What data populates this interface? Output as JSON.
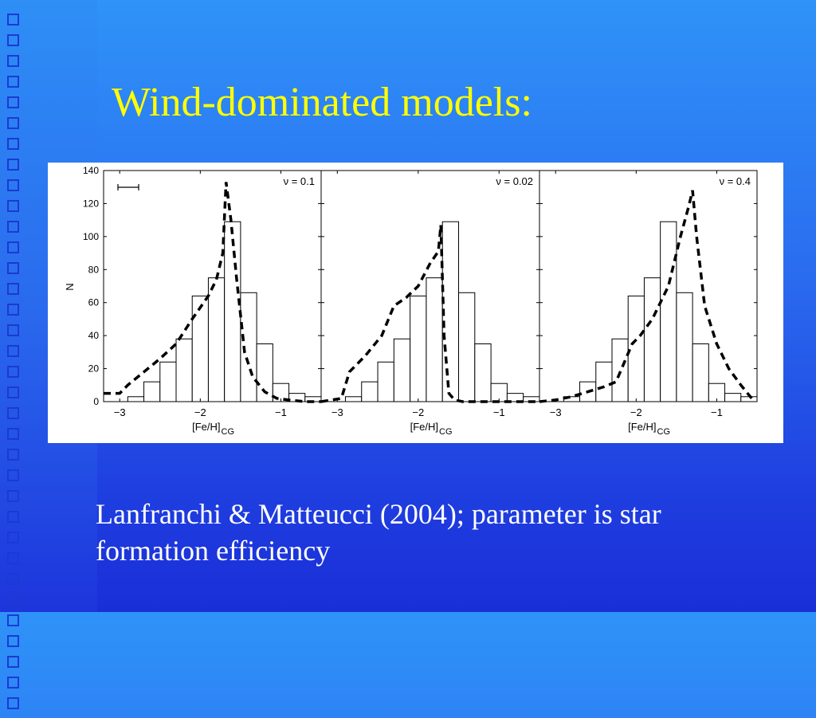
{
  "slide": {
    "title": "Wind-dominated models:",
    "caption": "Lanfranchi & Matteucci (2004); parameter is star formation efficiency",
    "colors": {
      "title": "#ffff00",
      "caption": "#ffffff",
      "background": "#2a6cef"
    }
  },
  "chart_data": {
    "type": "bar",
    "ylabel": "N",
    "xlabel": "[Fe/H]",
    "xlabel_sub": "CG",
    "ylim": [
      0,
      140
    ],
    "xlim": [
      -3.2,
      -0.5
    ],
    "yticks": [
      0,
      20,
      40,
      60,
      80,
      100,
      120,
      140
    ],
    "xticks": [
      -3,
      -2,
      -1
    ],
    "xtick_labels": [
      "−3",
      "−2",
      "−1"
    ],
    "ytick_labels": [
      "0",
      "20",
      "40",
      "60",
      "80",
      "100",
      "120",
      "140"
    ],
    "histogram": {
      "bin_edges": [
        -3.1,
        -2.9,
        -2.7,
        -2.5,
        -2.3,
        -2.1,
        -1.9,
        -1.7,
        -1.5,
        -1.3,
        -1.1,
        -0.9,
        -0.7,
        -0.5
      ],
      "counts": [
        0,
        3,
        12,
        24,
        38,
        64,
        75,
        109,
        66,
        35,
        11,
        5,
        3
      ]
    },
    "panels": [
      {
        "label": "ν = 0.1",
        "error_bar": true,
        "model": {
          "x": [
            -3.2,
            -3.0,
            -2.9,
            -2.7,
            -2.5,
            -2.3,
            -2.1,
            -1.9,
            -1.8,
            -1.72,
            -1.68,
            -1.62,
            -1.55,
            -1.45,
            -1.35,
            -1.2,
            -1.05,
            -0.9,
            -0.7,
            -0.5
          ],
          "y": [
            5,
            5,
            10,
            18,
            26,
            35,
            50,
            64,
            74,
            90,
            133,
            110,
            75,
            30,
            15,
            6,
            2,
            1,
            0,
            0
          ]
        }
      },
      {
        "label": "ν = 0.02",
        "error_bar": false,
        "model": {
          "x": [
            -3.2,
            -2.95,
            -2.85,
            -2.65,
            -2.45,
            -2.3,
            -2.15,
            -2.0,
            -1.85,
            -1.75,
            -1.72,
            -1.68,
            -1.62,
            -1.55,
            -1.45,
            -1.2,
            -0.9,
            -0.5
          ],
          "y": [
            0,
            2,
            18,
            28,
            40,
            58,
            63,
            70,
            84,
            91,
            107,
            40,
            5,
            1,
            0,
            0,
            0,
            0
          ]
        }
      },
      {
        "label": "ν = 0.4",
        "error_bar": false,
        "model": {
          "x": [
            -3.2,
            -3.0,
            -2.8,
            -2.6,
            -2.4,
            -2.25,
            -2.05,
            -1.95,
            -1.8,
            -1.6,
            -1.45,
            -1.35,
            -1.3,
            -1.25,
            -1.15,
            -1.0,
            -0.85,
            -0.7,
            -0.55
          ],
          "y": [
            0,
            1,
            3,
            6,
            9,
            12,
            35,
            40,
            50,
            70,
            100,
            118,
            128,
            100,
            58,
            35,
            20,
            10,
            1
          ]
        }
      }
    ]
  }
}
